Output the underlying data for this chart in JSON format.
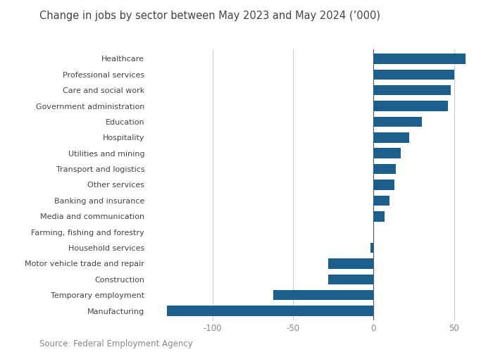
{
  "title": "Change in jobs by sector between May 2023 and May 2024 (’000)",
  "categories": [
    "Manufacturing",
    "Temporary employment",
    "Construction",
    "Motor vehicle trade and repair",
    "Household services",
    "Farming, fishing and forestry",
    "Media and communication",
    "Banking and insurance",
    "Other services",
    "Transport and logistics",
    "Utilities and mining",
    "Hospitality",
    "Education",
    "Government administration",
    "Care and social work",
    "Professional services",
    "Healthcare"
  ],
  "values": [
    -128,
    -62,
    -28,
    -28,
    -2,
    0,
    7,
    10,
    13,
    14,
    17,
    22,
    30,
    46,
    48,
    50,
    57
  ],
  "bar_color": "#1c5f8c",
  "xlim": [
    -140,
    65
  ],
  "xticks": [
    -100,
    -50,
    0,
    50
  ],
  "source": "Source: Federal Employment Agency",
  "title_fontsize": 10.5,
  "source_fontsize": 8.5,
  "label_fontsize": 8.0,
  "bg_color": "#ffffff",
  "text_color": "#444444",
  "tick_color": "#888888",
  "gridline_color": "#cccccc",
  "zeroline_color": "#555555"
}
